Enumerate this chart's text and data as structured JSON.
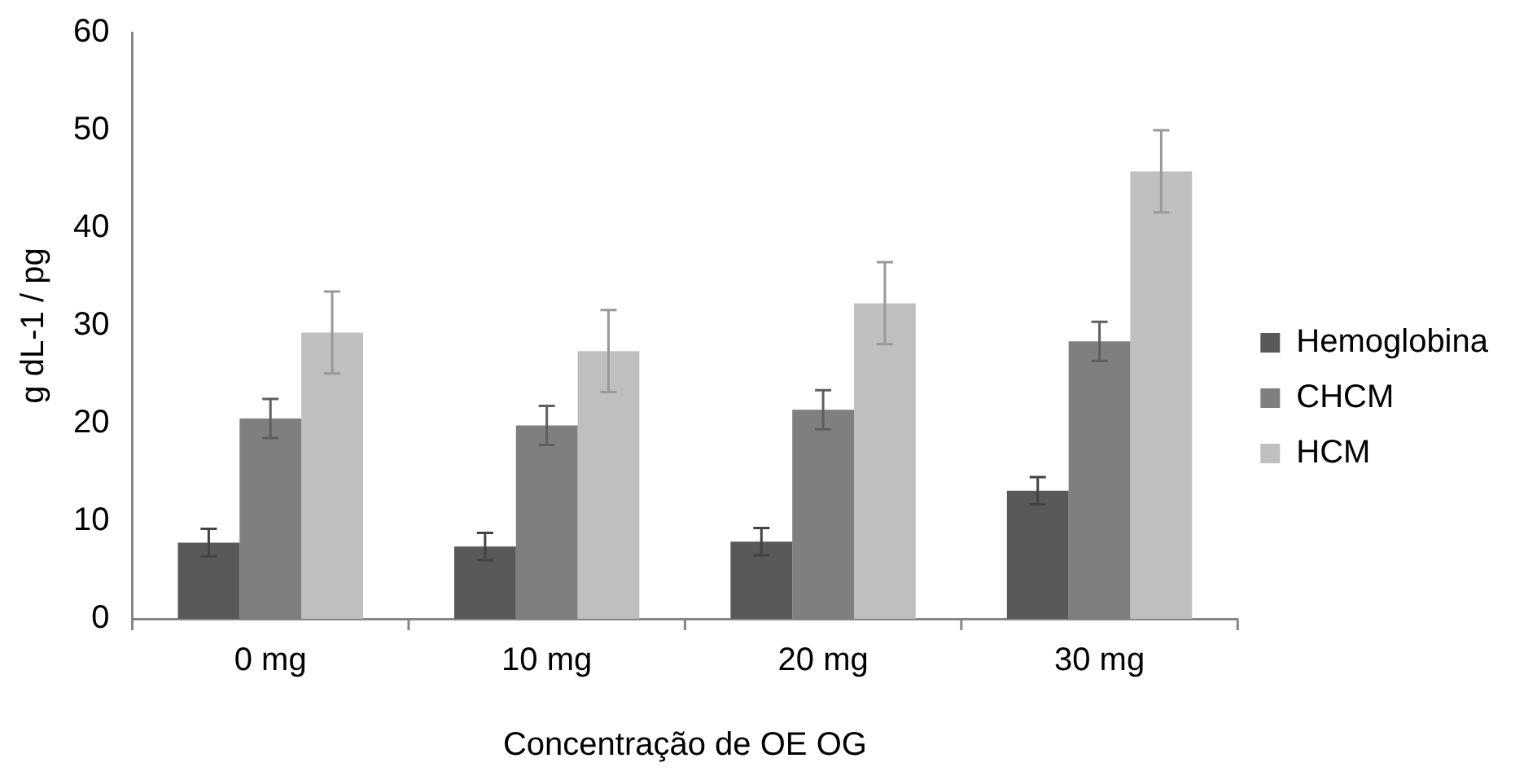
{
  "chart_data": {
    "type": "bar",
    "xlabel": "Concentração de OE OG",
    "ylabel": "g dL-1 / pg",
    "categories": [
      "0 mg",
      "10 mg",
      "20 mg",
      "30 mg"
    ],
    "series": [
      {
        "name": "Hemoglobina",
        "color": "#595959",
        "values": [
          7.8,
          7.4,
          7.9,
          13.1
        ],
        "errors": [
          1.4,
          1.4,
          1.4,
          1.4
        ]
      },
      {
        "name": "CHCM",
        "color": "#7f7f7f",
        "values": [
          20.5,
          19.8,
          21.4,
          28.4
        ],
        "errors": [
          2,
          2,
          2,
          2
        ]
      },
      {
        "name": "HCM",
        "color": "#bfbfbf",
        "values": [
          29.3,
          27.4,
          32.3,
          45.8
        ],
        "errors": [
          4.2,
          4.2,
          4.2,
          4.2
        ]
      }
    ],
    "ylim": [
      0,
      60
    ],
    "yticks": [
      0,
      10,
      20,
      30,
      40,
      50,
      60
    ],
    "grid": false,
    "legend": "right"
  }
}
